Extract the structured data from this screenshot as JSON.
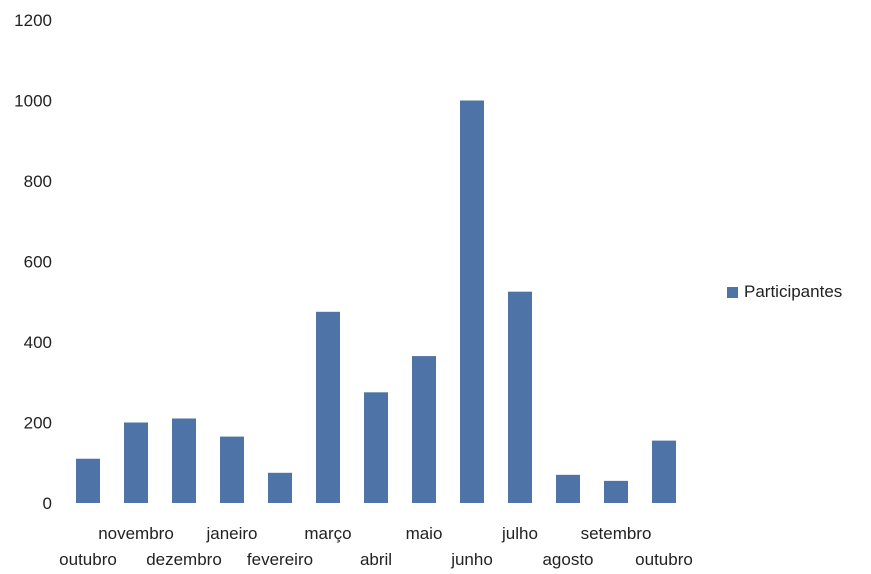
{
  "chart_data": {
    "type": "bar",
    "categories": [
      "outubro",
      "novembro",
      "dezembro",
      "janeiro",
      "fevereiro",
      "março",
      "abril",
      "maio",
      "junho",
      "julho",
      "agosto",
      "setembro",
      "outubro"
    ],
    "series": [
      {
        "name": "Participantes",
        "values": [
          110,
          200,
          210,
          165,
          75,
          475,
          275,
          365,
          1000,
          525,
          70,
          55,
          155
        ],
        "color": "#4e73a6"
      }
    ],
    "ylim": [
      0,
      1200
    ],
    "yticks": [
      "0",
      "200",
      "400",
      "600",
      "800",
      "1000",
      "1200"
    ],
    "grid": false,
    "legend_position": "right"
  }
}
